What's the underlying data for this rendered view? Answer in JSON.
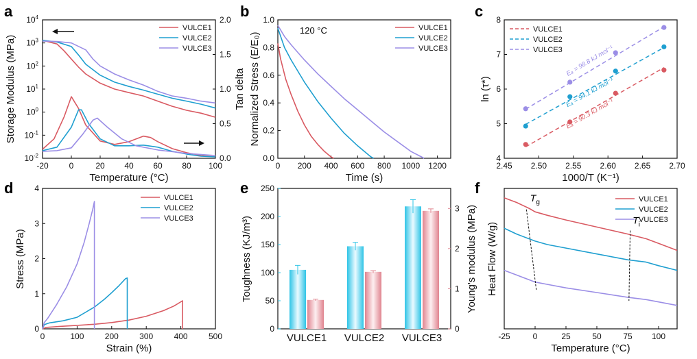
{
  "colors": {
    "vulce1": "#d95a62",
    "vulce2": "#1f9fd0",
    "vulce3": "#9b8ee6",
    "toughness": "#2ec4e6",
    "young": "#e0848f"
  },
  "chart_data": [
    {
      "id": "a",
      "panel_label": "a",
      "type": "line",
      "xlabel": "Temperature (°C)",
      "ylabel_left": "Storage Modulus (MPa)",
      "ylabel_right": "Tan delta",
      "xlim": [
        -20,
        100
      ],
      "xticks": [
        -20,
        0,
        20,
        40,
        60,
        80,
        100
      ],
      "ylim_left_log": [
        0.01,
        10000
      ],
      "yticks_left": [
        "10^-2",
        "10^-1",
        "10^0",
        "10^1",
        "10^2",
        "10^3",
        "10^4"
      ],
      "ylim_right": [
        0,
        2.0
      ],
      "yticks_right": [
        "0.0",
        "0.5",
        "1.0",
        "1.5",
        "2.0"
      ],
      "legend": [
        "VULCE1",
        "VULCE2",
        "VULCE3"
      ],
      "storage_modulus": [
        {
          "name": "VULCE1",
          "x": [
            -20,
            -10,
            -5,
            0,
            5,
            10,
            20,
            30,
            40,
            50,
            60,
            70,
            80,
            90,
            100
          ],
          "y": [
            1300,
            900,
            450,
            200,
            90,
            45,
            18,
            10,
            7,
            5,
            3,
            1.8,
            1.2,
            0.9,
            0.6
          ]
        },
        {
          "name": "VULCE2",
          "x": [
            -20,
            -10,
            0,
            5,
            10,
            20,
            30,
            40,
            50,
            60,
            70,
            80,
            90,
            100
          ],
          "y": [
            1300,
            1100,
            700,
            300,
            120,
            40,
            20,
            13,
            9,
            6,
            4,
            3,
            2.2,
            1.5
          ]
        },
        {
          "name": "VULCE3",
          "x": [
            -20,
            -10,
            0,
            10,
            15,
            20,
            30,
            40,
            50,
            60,
            70,
            80,
            90,
            100
          ],
          "y": [
            1200,
            1150,
            1000,
            500,
            200,
            100,
            45,
            25,
            15,
            8,
            5,
            4,
            3,
            2.5
          ]
        }
      ],
      "tan_delta": [
        {
          "name": "VULCE1",
          "x": [
            -20,
            -12,
            -5,
            0,
            5,
            10,
            20,
            30,
            40,
            50,
            55,
            60,
            70,
            80,
            90,
            100
          ],
          "y": [
            0.13,
            0.28,
            0.6,
            0.89,
            0.72,
            0.48,
            0.25,
            0.2,
            0.24,
            0.32,
            0.3,
            0.24,
            0.14,
            0.08,
            0.04,
            0.02
          ]
        },
        {
          "name": "VULCE2",
          "x": [
            -20,
            -10,
            0,
            5,
            7,
            12,
            20,
            30,
            40,
            50,
            60,
            70,
            80,
            90,
            100
          ],
          "y": [
            0.11,
            0.16,
            0.45,
            0.7,
            0.7,
            0.5,
            0.28,
            0.18,
            0.18,
            0.19,
            0.16,
            0.1,
            0.06,
            0.03,
            0.02
          ]
        },
        {
          "name": "VULCE3",
          "x": [
            -20,
            -10,
            0,
            8,
            15,
            18,
            25,
            35,
            45,
            60,
            80,
            100
          ],
          "y": [
            0.1,
            0.11,
            0.15,
            0.35,
            0.55,
            0.58,
            0.45,
            0.28,
            0.18,
            0.12,
            0.07,
            0.04
          ]
        }
      ]
    },
    {
      "id": "b",
      "panel_label": "b",
      "type": "line",
      "xlabel": "Time (s)",
      "ylabel": "Normalized Stress (E/E₀)",
      "annotation": "120 °C",
      "xlim": [
        0,
        1300
      ],
      "xticks": [
        0,
        200,
        400,
        600,
        800,
        1000,
        1200
      ],
      "ylim": [
        0,
        1.0
      ],
      "yticks": [
        "0.0",
        "0.2",
        "0.4",
        "0.6",
        "0.8",
        "1.0"
      ],
      "legend": [
        "VULCE1",
        "VULCE2",
        "VULCE3"
      ],
      "series": [
        {
          "name": "VULCE1",
          "x": [
            0,
            20,
            60,
            100,
            150,
            200,
            250,
            300,
            350,
            400,
            420
          ],
          "y": [
            0.83,
            0.72,
            0.57,
            0.46,
            0.34,
            0.24,
            0.16,
            0.1,
            0.05,
            0.01,
            0.0
          ]
        },
        {
          "name": "VULCE2",
          "x": [
            0,
            50,
            100,
            200,
            300,
            400,
            500,
            600,
            650,
            700,
            720
          ],
          "y": [
            0.94,
            0.8,
            0.71,
            0.55,
            0.41,
            0.29,
            0.18,
            0.09,
            0.05,
            0.01,
            0.0
          ]
        },
        {
          "name": "VULCE3",
          "x": [
            0,
            50,
            100,
            200,
            300,
            400,
            500,
            600,
            700,
            800,
            900,
            1000,
            1080,
            1100
          ],
          "y": [
            0.96,
            0.88,
            0.82,
            0.71,
            0.61,
            0.52,
            0.43,
            0.35,
            0.27,
            0.19,
            0.12,
            0.05,
            0.01,
            0.0
          ]
        }
      ]
    },
    {
      "id": "c",
      "panel_label": "c",
      "type": "scatter",
      "xlabel": "1000/T (K⁻¹)",
      "ylabel": "ln (τ*)",
      "xlim": [
        2.45,
        2.7
      ],
      "xticks": [
        "2.45",
        "2.50",
        "2.55",
        "2.60",
        "2.65",
        "2.70"
      ],
      "ylim": [
        4,
        8
      ],
      "yticks": [
        "4",
        "5",
        "6",
        "7",
        "8"
      ],
      "legend": [
        "VULCE1",
        "VULCE2",
        "VULCE3"
      ],
      "series": [
        {
          "name": "VULCE1",
          "x": [
            2.481,
            2.545,
            2.611,
            2.681
          ],
          "y": [
            4.4,
            5.05,
            5.88,
            6.55
          ],
          "fit": [
            [
              2.481,
              4.33
            ],
            [
              2.681,
              6.62
            ]
          ],
          "label": "Eₐ = 90.3 kJ mol⁻¹"
        },
        {
          "name": "VULCE2",
          "x": [
            2.481,
            2.545,
            2.611,
            2.681
          ],
          "y": [
            4.93,
            5.78,
            6.52,
            7.22
          ],
          "fit": [
            [
              2.481,
              4.98
            ],
            [
              2.681,
              7.2
            ]
          ],
          "label": "Eₐ = 94.1 kJ mol⁻¹"
        },
        {
          "name": "VULCE3",
          "x": [
            2.481,
            2.545,
            2.611,
            2.681
          ],
          "y": [
            5.43,
            6.2,
            7.05,
            7.78
          ],
          "fit": [
            [
              2.481,
              5.42
            ],
            [
              2.681,
              7.8
            ]
          ],
          "label": "Eₐ = 98.8 kJ mol⁻¹"
        }
      ]
    },
    {
      "id": "d",
      "panel_label": "d",
      "type": "line",
      "xlabel": "Strain (%)",
      "ylabel": "Stress (MPa)",
      "xlim": [
        0,
        500
      ],
      "xticks": [
        0,
        100,
        200,
        300,
        400,
        500
      ],
      "ylim": [
        0,
        4
      ],
      "yticks": [
        "0",
        "1",
        "2",
        "3",
        "4"
      ],
      "legend": [
        "VULCE1",
        "VULCE2",
        "VULCE3"
      ],
      "series": [
        {
          "name": "VULCE1",
          "x": [
            0,
            10,
            50,
            100,
            150,
            200,
            250,
            300,
            350,
            380,
            405,
            405
          ],
          "y": [
            0,
            0.04,
            0.07,
            0.1,
            0.13,
            0.18,
            0.25,
            0.36,
            0.52,
            0.65,
            0.8,
            0.0
          ]
        },
        {
          "name": "VULCE2",
          "x": [
            0,
            5,
            20,
            60,
            100,
            150,
            180,
            200,
            220,
            240,
            245,
            245
          ],
          "y": [
            0,
            0.12,
            0.17,
            0.23,
            0.33,
            0.62,
            0.85,
            1.03,
            1.22,
            1.43,
            1.45,
            0.0
          ]
        },
        {
          "name": "VULCE3",
          "x": [
            0,
            5,
            15,
            40,
            70,
            100,
            120,
            135,
            145,
            150,
            150
          ],
          "y": [
            0,
            0.18,
            0.3,
            0.68,
            1.2,
            1.85,
            2.45,
            3.0,
            3.4,
            3.63,
            0.0
          ]
        }
      ]
    },
    {
      "id": "e",
      "panel_label": "e",
      "type": "bar",
      "categories": [
        "VULCE1",
        "VULCE2",
        "VULCE3"
      ],
      "ylabel_left": "Toughness (KJ/m³)",
      "ylabel_right": "Young's modulus (MPa)",
      "ylim_left": [
        0,
        250
      ],
      "yticks_left": [
        "0",
        "50",
        "100",
        "150",
        "200",
        "250"
      ],
      "ylim_right": [
        0,
        3.5
      ],
      "yticks_right": [
        "0",
        "1",
        "2",
        "3"
      ],
      "series": [
        {
          "name": "Toughness",
          "axis": "left",
          "values": [
            105,
            147,
            218
          ],
          "errors": [
            8,
            7,
            12
          ]
        },
        {
          "name": "Young's modulus",
          "axis": "right",
          "values": [
            0.72,
            1.42,
            2.94
          ],
          "errors": [
            0.02,
            0.03,
            0.05
          ]
        }
      ]
    },
    {
      "id": "f",
      "panel_label": "f",
      "type": "line",
      "xlabel": "Temperature (°C)",
      "ylabel": "Heat Flow (W/g)",
      "xlim": [
        -25,
        115
      ],
      "xticks": [
        -25,
        0,
        25,
        50,
        75,
        100
      ],
      "annotations": [
        "T_g",
        "T_i"
      ],
      "legend": [
        "VULCE1",
        "VULCE2",
        "VULCE3"
      ],
      "series": [
        {
          "name": "VULCE1",
          "x": [
            -25,
            -15,
            -5,
            0,
            10,
            25,
            50,
            75,
            90,
            100,
            115
          ],
          "y": [
            0.92,
            0.88,
            0.83,
            0.8,
            0.77,
            0.73,
            0.67,
            0.61,
            0.57,
            0.53,
            0.47
          ]
        },
        {
          "name": "VULCE2",
          "x": [
            -25,
            -15,
            -5,
            0,
            10,
            25,
            50,
            75,
            90,
            100,
            115
          ],
          "y": [
            0.66,
            0.61,
            0.57,
            0.55,
            0.52,
            0.49,
            0.44,
            0.39,
            0.37,
            0.34,
            0.3
          ]
        },
        {
          "name": "VULCE3",
          "x": [
            -25,
            -15,
            -5,
            0,
            10,
            25,
            50,
            75,
            90,
            100,
            115
          ],
          "y": [
            0.3,
            0.26,
            0.22,
            0.2,
            0.18,
            0.15,
            0.11,
            0.07,
            0.05,
            0.03,
            0.0
          ]
        }
      ]
    }
  ]
}
